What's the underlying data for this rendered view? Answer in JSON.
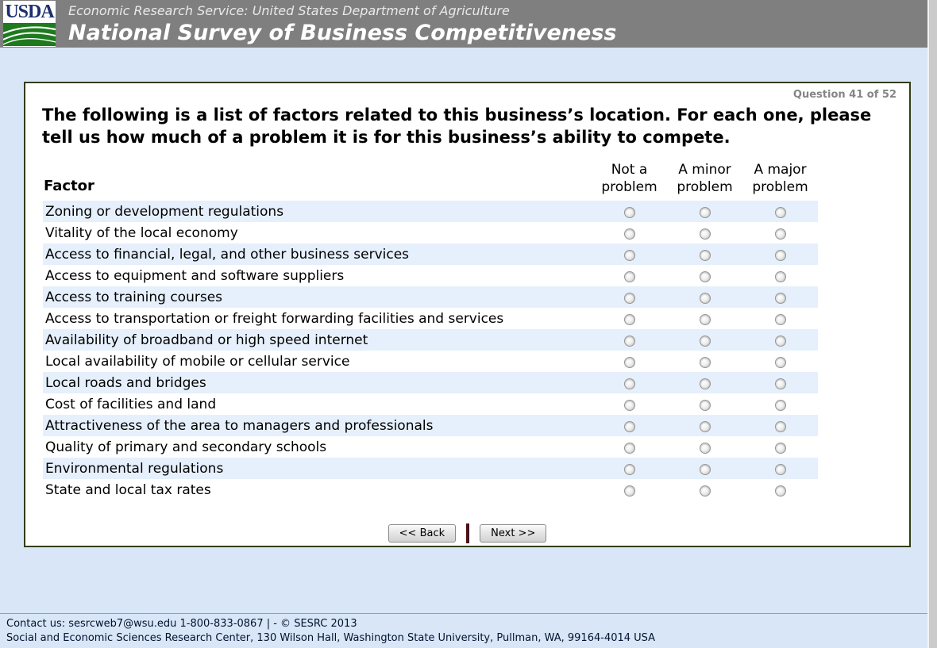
{
  "header": {
    "logo_text": "USDA",
    "agency_line": "Economic Research Service: United States Department of Agriculture",
    "survey_title": "National Survey of Business Competitiveness"
  },
  "question": {
    "progress": "Question 41 of 52",
    "prompt": "The following is a list of factors related to this business’s location. For each one, please tell us how much of a problem it is for this business’s ability to compete."
  },
  "table": {
    "factor_header": "Factor",
    "options": [
      "Not a problem",
      "A minor problem",
      "A major problem"
    ],
    "option_names": [
      "not-a-problem",
      "minor-problem",
      "major-problem"
    ],
    "rows": [
      "Zoning or development regulations",
      "Vitality of the local economy",
      "Access to financial, legal, and other business services",
      "Access to equipment and software suppliers",
      "Access to training courses",
      "Access to transportation or freight forwarding facilities and services",
      "Availability of broadband or high speed internet",
      "Local availability of mobile or cellular service",
      "Local roads and bridges",
      "Cost of facilities and land",
      "Attractiveness of the area to managers and professionals",
      "Quality of primary and secondary schools",
      "Environmental regulations",
      "State and local tax rates"
    ]
  },
  "buttons": {
    "back": "<< Back",
    "next": "Next >>"
  },
  "footer": {
    "line1": "Contact us: sesrcweb7@wsu.edu 1-800-833-0867 | - © SESRC 2013",
    "line2": "Social and Economic Sciences Research Center, 130 Wilson Hall, Washington State University, Pullman, WA, 99164-4014 USA"
  },
  "colors": {
    "header_bg": "#7f7f7f",
    "page_bg": "#d9e6f8",
    "row_stripe": "#e6f0fc",
    "panel_border": "#333d14",
    "logo_blue": "#1b2f6e",
    "logo_green": "#1e7a1e",
    "divider_maroon": "#5b1010"
  }
}
